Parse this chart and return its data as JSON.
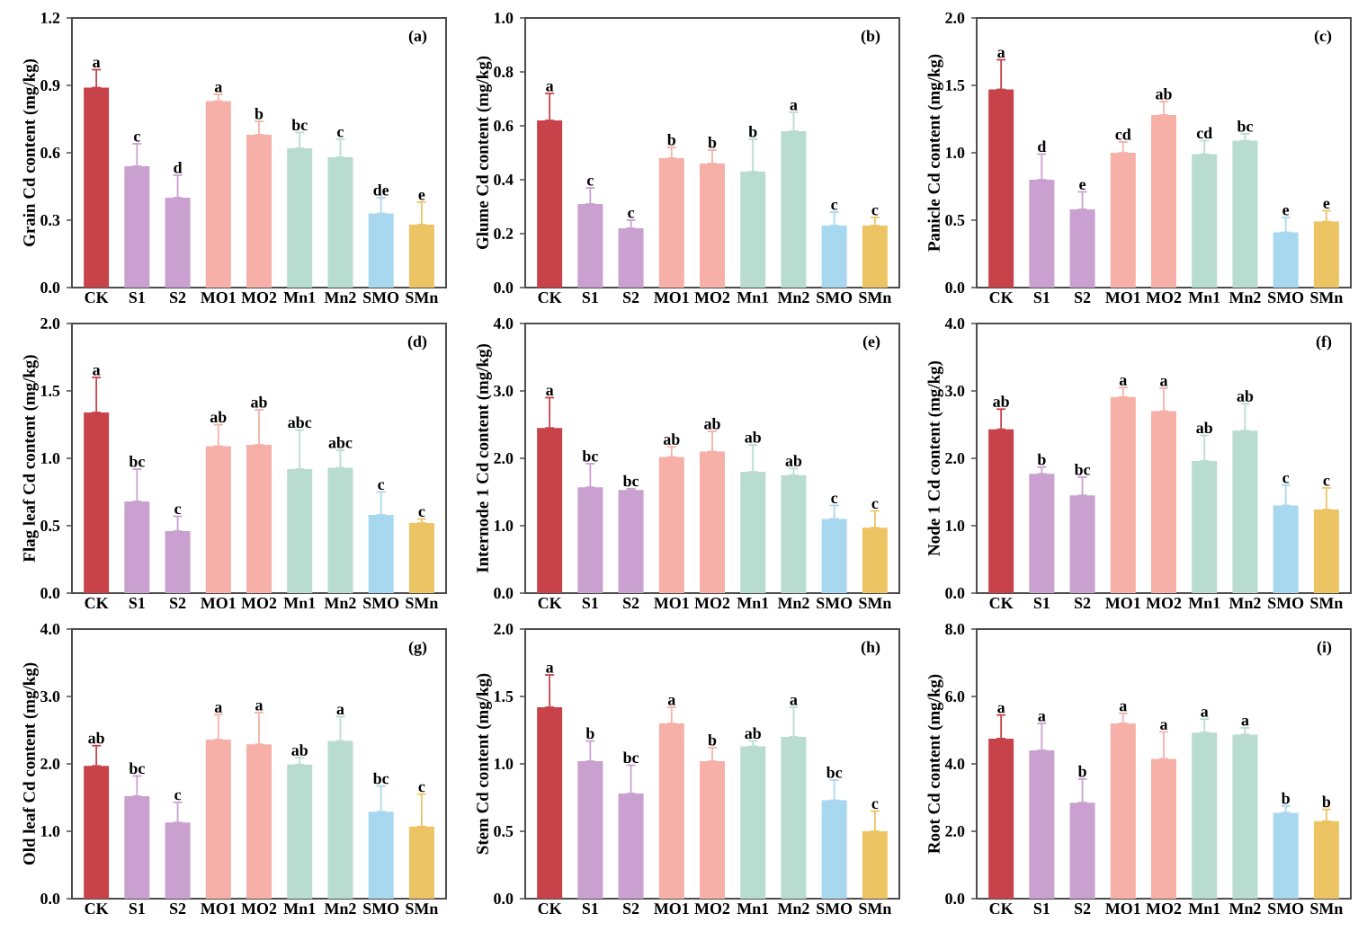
{
  "chart_data": [
    {
      "type": "bar",
      "categories": [
        "CK",
        "S1",
        "S2",
        "MO1",
        "MO2",
        "Mn1",
        "Mn2",
        "SMO",
        "SMn"
      ],
      "ylabel": "Grain Cd content (mg/kg)",
      "ylim": [
        0,
        1.2
      ],
      "yticks": [
        {
          "value": 0,
          "label": "0.0"
        },
        {
          "value": 0.3,
          "label": "0.3"
        },
        {
          "value": 0.6,
          "label": "0.6"
        },
        {
          "value": 0.9,
          "label": "0.9"
        },
        {
          "value": 1.2,
          "label": "1.2"
        }
      ],
      "values": [
        0.89,
        0.54,
        0.4,
        0.83,
        0.68,
        0.62,
        0.58,
        0.33,
        0.28
      ],
      "errors": [
        [
          0.89,
          0.97
        ],
        [
          0.54,
          0.64
        ],
        [
          0.4,
          0.5
        ],
        [
          0.83,
          0.86
        ],
        [
          0.68,
          0.74
        ],
        [
          0.62,
          0.69
        ],
        [
          0.58,
          0.66
        ],
        [
          0.33,
          0.4
        ],
        [
          0.28,
          0.38
        ]
      ],
      "colors": [
        "#c8424a",
        "#c9a0d0",
        "#c9a0d0",
        "#f7b0a8",
        "#f7b0a8",
        "#b8ddd0",
        "#b8ddd0",
        "#a8d8f0",
        "#ecc463"
      ],
      "annotations": [
        "(a)",
        {
          "text": "a",
          "x": "CK",
          "y": 0.97
        },
        {
          "text": "c",
          "x": "S1",
          "y": 0.64
        },
        {
          "text": "d",
          "x": "S2",
          "y": 0.5
        },
        {
          "text": "a",
          "x": "MO1",
          "y": 0.86
        },
        {
          "text": "b",
          "x": "MO2",
          "y": 0.74
        },
        {
          "text": "bc",
          "x": "Mn1",
          "y": 0.69
        },
        {
          "text": "c",
          "x": "Mn2",
          "y": 0.66
        },
        {
          "text": "de",
          "x": "SMO",
          "y": 0.4
        },
        {
          "text": "e",
          "x": "SMn",
          "y": 0.38
        }
      ]
    },
    {
      "type": "bar",
      "categories": [
        "CK",
        "S1",
        "S2",
        "MO1",
        "MO2",
        "Mn1",
        "Mn2",
        "SMO",
        "SMn"
      ],
      "ylabel": "Glume Cd content (mg/kg)",
      "ylim": [
        0,
        1.0
      ],
      "yticks": [
        {
          "value": 0,
          "label": "0.0"
        },
        {
          "value": 0.2,
          "label": "0.2"
        },
        {
          "value": 0.4,
          "label": "0.4"
        },
        {
          "value": 0.6,
          "label": "0.6"
        },
        {
          "value": 0.8,
          "label": "0.8"
        },
        {
          "value": 1.0,
          "label": "1.0"
        }
      ],
      "values": [
        0.62,
        0.31,
        0.22,
        0.48,
        0.46,
        0.43,
        0.58,
        0.23,
        0.23
      ],
      "errors": [
        [
          0.62,
          0.72
        ],
        [
          0.31,
          0.37
        ],
        [
          0.22,
          0.25
        ],
        [
          0.48,
          0.52
        ],
        [
          0.46,
          0.51
        ],
        [
          0.43,
          0.55
        ],
        [
          0.58,
          0.65
        ],
        [
          0.23,
          0.28
        ],
        [
          0.23,
          0.26
        ]
      ],
      "colors": [
        "#c8424a",
        "#c9a0d0",
        "#c9a0d0",
        "#f7b0a8",
        "#f7b0a8",
        "#b8ddd0",
        "#b8ddd0",
        "#a8d8f0",
        "#ecc463"
      ],
      "annotations": [
        "(b)",
        {
          "text": "a",
          "x": "CK",
          "y": 0.72
        },
        {
          "text": "c",
          "x": "S1",
          "y": 0.37
        },
        {
          "text": "c",
          "x": "S2",
          "y": 0.25
        },
        {
          "text": "b",
          "x": "MO1",
          "y": 0.52
        },
        {
          "text": "b",
          "x": "MO2",
          "y": 0.51
        },
        {
          "text": "b",
          "x": "Mn1",
          "y": 0.55
        },
        {
          "text": "a",
          "x": "Mn2",
          "y": 0.65
        },
        {
          "text": "c",
          "x": "SMO",
          "y": 0.28
        },
        {
          "text": "c",
          "x": "SMn",
          "y": 0.26
        }
      ]
    },
    {
      "type": "bar",
      "categories": [
        "CK",
        "S1",
        "S2",
        "MO1",
        "MO2",
        "Mn1",
        "Mn2",
        "SMO",
        "SMn"
      ],
      "ylabel": "Panicle Cd  content (mg/kg)",
      "ylim": [
        0,
        2.0
      ],
      "yticks": [
        {
          "value": 0,
          "label": "0.0"
        },
        {
          "value": 0.5,
          "label": "0.5"
        },
        {
          "value": 1.0,
          "label": "1.0"
        },
        {
          "value": 1.5,
          "label": "1.5"
        },
        {
          "value": 2.0,
          "label": "2.0"
        }
      ],
      "values": [
        1.47,
        0.8,
        0.58,
        1.0,
        1.28,
        0.99,
        1.09,
        0.41,
        0.49
      ],
      "errors": [
        [
          1.47,
          1.69
        ],
        [
          0.8,
          0.99
        ],
        [
          0.58,
          0.71
        ],
        [
          1.0,
          1.08
        ],
        [
          1.28,
          1.38
        ],
        [
          0.99,
          1.09
        ],
        [
          1.09,
          1.14
        ],
        [
          0.41,
          0.52
        ],
        [
          0.49,
          0.57
        ]
      ],
      "colors": [
        "#c8424a",
        "#c9a0d0",
        "#c9a0d0",
        "#f7b0a8",
        "#f7b0a8",
        "#b8ddd0",
        "#b8ddd0",
        "#a8d8f0",
        "#ecc463"
      ],
      "annotations": [
        "(c)",
        {
          "text": "a",
          "x": "CK",
          "y": 1.69
        },
        {
          "text": "d",
          "x": "S1",
          "y": 0.99
        },
        {
          "text": "e",
          "x": "S2",
          "y": 0.71
        },
        {
          "text": "cd",
          "x": "MO1",
          "y": 1.08
        },
        {
          "text": "ab",
          "x": "MO2",
          "y": 1.38
        },
        {
          "text": "cd",
          "x": "Mn1",
          "y": 1.09
        },
        {
          "text": "bc",
          "x": "Mn2",
          "y": 1.14
        },
        {
          "text": "e",
          "x": "SMO",
          "y": 0.52
        },
        {
          "text": "e",
          "x": "SMn",
          "y": 0.57
        }
      ]
    },
    {
      "type": "bar",
      "categories": [
        "CK",
        "S1",
        "S2",
        "MO1",
        "MO2",
        "Mn1",
        "Mn2",
        "SMO",
        "SMn"
      ],
      "ylabel": "Flag leaf Cd content (mg/kg)",
      "ylim": [
        0,
        2.0
      ],
      "yticks": [
        {
          "value": 0,
          "label": "0.0"
        },
        {
          "value": 0.5,
          "label": "0.5"
        },
        {
          "value": 1.0,
          "label": "1.0"
        },
        {
          "value": 1.5,
          "label": "1.5"
        },
        {
          "value": 2.0,
          "label": "2.0"
        }
      ],
      "values": [
        1.34,
        0.68,
        0.46,
        1.09,
        1.1,
        0.92,
        0.93,
        0.58,
        0.52
      ],
      "errors": [
        [
          1.34,
          1.6
        ],
        [
          0.68,
          0.92
        ],
        [
          0.46,
          0.57
        ],
        [
          1.09,
          1.25
        ],
        [
          1.1,
          1.36
        ],
        [
          0.92,
          1.21
        ],
        [
          0.93,
          1.06
        ],
        [
          0.58,
          0.75
        ],
        [
          0.52,
          0.55
        ]
      ],
      "colors": [
        "#c8424a",
        "#c9a0d0",
        "#c9a0d0",
        "#f7b0a8",
        "#f7b0a8",
        "#b8ddd0",
        "#b8ddd0",
        "#a8d8f0",
        "#ecc463"
      ],
      "annotations": [
        "(d)",
        {
          "text": "a",
          "x": "CK",
          "y": 1.6
        },
        {
          "text": "bc",
          "x": "S1",
          "y": 0.92
        },
        {
          "text": "c",
          "x": "S2",
          "y": 0.57
        },
        {
          "text": "ab",
          "x": "MO1",
          "y": 1.25
        },
        {
          "text": "ab",
          "x": "MO2",
          "y": 1.36
        },
        {
          "text": "abc",
          "x": "Mn1",
          "y": 1.21
        },
        {
          "text": "abc",
          "x": "Mn2",
          "y": 1.06
        },
        {
          "text": "c",
          "x": "SMO",
          "y": 0.75
        },
        {
          "text": "c",
          "x": "SMn",
          "y": 0.55
        }
      ]
    },
    {
      "type": "bar",
      "categories": [
        "CK",
        "S1",
        "S2",
        "MO1",
        "MO2",
        "Mn1",
        "Mn2",
        "SMO",
        "SMn"
      ],
      "ylabel": "Internode 1 Cd content (mg/kg)",
      "ylim": [
        0,
        4.0
      ],
      "yticks": [
        {
          "value": 0,
          "label": "0.0"
        },
        {
          "value": 1.0,
          "label": "1.0"
        },
        {
          "value": 2.0,
          "label": "2.0"
        },
        {
          "value": 3.0,
          "label": "3.0"
        },
        {
          "value": 4.0,
          "label": "4.0"
        }
      ],
      "values": [
        2.45,
        1.57,
        1.53,
        2.02,
        2.1,
        1.8,
        1.75,
        1.1,
        0.97
      ],
      "errors": [
        [
          2.45,
          2.9
        ],
        [
          1.57,
          1.92
        ],
        [
          1.53,
          1.55
        ],
        [
          2.02,
          2.17
        ],
        [
          2.1,
          2.4
        ],
        [
          1.8,
          2.2
        ],
        [
          1.75,
          1.85
        ],
        [
          1.1,
          1.3
        ],
        [
          0.97,
          1.22
        ]
      ],
      "colors": [
        "#c8424a",
        "#c9a0d0",
        "#c9a0d0",
        "#f7b0a8",
        "#f7b0a8",
        "#b8ddd0",
        "#b8ddd0",
        "#a8d8f0",
        "#ecc463"
      ],
      "annotations": [
        "(e)",
        {
          "text": "a",
          "x": "CK",
          "y": 2.9
        },
        {
          "text": "bc",
          "x": "S1",
          "y": 1.92
        },
        {
          "text": "bc",
          "x": "S2",
          "y": 1.55
        },
        {
          "text": "ab",
          "x": "MO1",
          "y": 2.17
        },
        {
          "text": "ab",
          "x": "MO2",
          "y": 2.4
        },
        {
          "text": "ab",
          "x": "Mn1",
          "y": 2.2
        },
        {
          "text": "ab",
          "x": "Mn2",
          "y": 1.85
        },
        {
          "text": "c",
          "x": "SMO",
          "y": 1.3
        },
        {
          "text": "c",
          "x": "SMn",
          "y": 1.22
        }
      ]
    },
    {
      "type": "bar",
      "categories": [
        "CK",
        "S1",
        "S2",
        "MO1",
        "MO2",
        "Mn1",
        "Mn2",
        "SMO",
        "SMn"
      ],
      "ylabel": "Node 1 Cd content (mg/kg)",
      "ylim": [
        0,
        4.0
      ],
      "yticks": [
        {
          "value": 0,
          "label": "0.0"
        },
        {
          "value": 1.0,
          "label": "1.0"
        },
        {
          "value": 2.0,
          "label": "2.0"
        },
        {
          "value": 3.0,
          "label": "3.0"
        },
        {
          "value": 4.0,
          "label": "4.0"
        }
      ],
      "values": [
        2.43,
        1.77,
        1.45,
        2.91,
        2.7,
        1.96,
        2.41,
        1.3,
        1.24
      ],
      "errors": [
        [
          2.43,
          2.73
        ],
        [
          1.77,
          1.87
        ],
        [
          1.45,
          1.72
        ],
        [
          2.91,
          3.05
        ],
        [
          2.7,
          3.04
        ],
        [
          1.96,
          2.34
        ],
        [
          2.41,
          2.81
        ],
        [
          1.3,
          1.6
        ],
        [
          1.24,
          1.56
        ]
      ],
      "colors": [
        "#c8424a",
        "#c9a0d0",
        "#c9a0d0",
        "#f7b0a8",
        "#f7b0a8",
        "#b8ddd0",
        "#b8ddd0",
        "#a8d8f0",
        "#ecc463"
      ],
      "annotations": [
        "(f)",
        {
          "text": "ab",
          "x": "CK",
          "y": 2.73
        },
        {
          "text": "b",
          "x": "S1",
          "y": 1.87
        },
        {
          "text": "bc",
          "x": "S2",
          "y": 1.72
        },
        {
          "text": "a",
          "x": "MO1",
          "y": 3.05
        },
        {
          "text": "a",
          "x": "MO2",
          "y": 3.04
        },
        {
          "text": "ab",
          "x": "Mn1",
          "y": 2.34
        },
        {
          "text": "ab",
          "x": "Mn2",
          "y": 2.81
        },
        {
          "text": "c",
          "x": "SMO",
          "y": 1.6
        },
        {
          "text": "c",
          "x": "SMn",
          "y": 1.56
        }
      ]
    },
    {
      "type": "bar",
      "categories": [
        "CK",
        "S1",
        "S2",
        "MO1",
        "MO2",
        "Mn1",
        "Mn2",
        "SMO",
        "SMn"
      ],
      "ylabel": "Old leaf Cd content (mg/kg)",
      "ylim": [
        0,
        4.0
      ],
      "yticks": [
        {
          "value": 0,
          "label": "0.0"
        },
        {
          "value": 1.0,
          "label": "1.0"
        },
        {
          "value": 2.0,
          "label": "2.0"
        },
        {
          "value": 3.0,
          "label": "3.0"
        },
        {
          "value": 4.0,
          "label": "4.0"
        }
      ],
      "values": [
        1.97,
        1.52,
        1.13,
        2.36,
        2.29,
        1.99,
        2.34,
        1.29,
        1.07
      ],
      "errors": [
        [
          1.97,
          2.27
        ],
        [
          1.52,
          1.82
        ],
        [
          1.13,
          1.43
        ],
        [
          2.36,
          2.73
        ],
        [
          2.29,
          2.76
        ],
        [
          1.99,
          2.09
        ],
        [
          2.34,
          2.7
        ],
        [
          1.29,
          1.67
        ],
        [
          1.07,
          1.55
        ]
      ],
      "colors": [
        "#c8424a",
        "#c9a0d0",
        "#c9a0d0",
        "#f7b0a8",
        "#f7b0a8",
        "#b8ddd0",
        "#b8ddd0",
        "#a8d8f0",
        "#ecc463"
      ],
      "annotations": [
        "(g)",
        {
          "text": "ab",
          "x": "CK",
          "y": 2.27
        },
        {
          "text": "bc",
          "x": "S1",
          "y": 1.82
        },
        {
          "text": "c",
          "x": "S2",
          "y": 1.43
        },
        {
          "text": "a",
          "x": "MO1",
          "y": 2.73
        },
        {
          "text": "a",
          "x": "MO2",
          "y": 2.76
        },
        {
          "text": "ab",
          "x": "Mn1",
          "y": 2.09
        },
        {
          "text": "a",
          "x": "Mn2",
          "y": 2.7
        },
        {
          "text": "bc",
          "x": "SMO",
          "y": 1.67
        },
        {
          "text": "c",
          "x": "SMn",
          "y": 1.55
        }
      ]
    },
    {
      "type": "bar",
      "categories": [
        "CK",
        "S1",
        "S2",
        "MO1",
        "MO2",
        "Mn1",
        "Mn2",
        "SMO",
        "SMn"
      ],
      "ylabel": "Stem Cd content (mg/kg)",
      "ylim": [
        0,
        2.0
      ],
      "yticks": [
        {
          "value": 0,
          "label": "0.0"
        },
        {
          "value": 0.5,
          "label": "0.5"
        },
        {
          "value": 1.0,
          "label": "1.0"
        },
        {
          "value": 1.5,
          "label": "1.5"
        },
        {
          "value": 2.0,
          "label": "2.0"
        }
      ],
      "values": [
        1.42,
        1.02,
        0.78,
        1.3,
        1.02,
        1.13,
        1.2,
        0.73,
        0.5
      ],
      "errors": [
        [
          1.42,
          1.66
        ],
        [
          1.02,
          1.17
        ],
        [
          0.78,
          0.99
        ],
        [
          1.3,
          1.42
        ],
        [
          1.02,
          1.12
        ],
        [
          1.13,
          1.17
        ],
        [
          1.2,
          1.42
        ],
        [
          0.73,
          0.88
        ],
        [
          0.5,
          0.65
        ]
      ],
      "colors": [
        "#c8424a",
        "#c9a0d0",
        "#c9a0d0",
        "#f7b0a8",
        "#f7b0a8",
        "#b8ddd0",
        "#b8ddd0",
        "#a8d8f0",
        "#ecc463"
      ],
      "annotations": [
        "(h)",
        {
          "text": "a",
          "x": "CK",
          "y": 1.66
        },
        {
          "text": "b",
          "x": "S1",
          "y": 1.17
        },
        {
          "text": "bc",
          "x": "S2",
          "y": 0.99
        },
        {
          "text": "a",
          "x": "MO1",
          "y": 1.42
        },
        {
          "text": "b",
          "x": "MO2",
          "y": 1.12
        },
        {
          "text": "ab",
          "x": "Mn1",
          "y": 1.17
        },
        {
          "text": "a",
          "x": "Mn2",
          "y": 1.42
        },
        {
          "text": "bc",
          "x": "SMO",
          "y": 0.88
        },
        {
          "text": "c",
          "x": "SMn",
          "y": 0.65
        }
      ]
    },
    {
      "type": "bar",
      "categories": [
        "CK",
        "S1",
        "S2",
        "MO1",
        "MO2",
        "Mn1",
        "Mn2",
        "SMO",
        "SMn"
      ],
      "ylabel": "Root Cd content (mg/kg)",
      "ylim": [
        0,
        8.0
      ],
      "yticks": [
        {
          "value": 0,
          "label": "0.0"
        },
        {
          "value": 2.0,
          "label": "2.0"
        },
        {
          "value": 4.0,
          "label": "4.0"
        },
        {
          "value": 6.0,
          "label": "6.0"
        },
        {
          "value": 8.0,
          "label": "8.0"
        }
      ],
      "values": [
        4.75,
        4.4,
        2.85,
        5.2,
        4.15,
        4.93,
        4.87,
        2.55,
        2.3
      ],
      "errors": [
        [
          4.75,
          5.45
        ],
        [
          4.4,
          5.2
        ],
        [
          2.85,
          3.55
        ],
        [
          5.2,
          5.5
        ],
        [
          4.15,
          4.95
        ],
        [
          4.93,
          5.33
        ],
        [
          4.87,
          5.07
        ],
        [
          2.55,
          2.75
        ],
        [
          2.3,
          2.65
        ]
      ],
      "colors": [
        "#c8424a",
        "#c9a0d0",
        "#c9a0d0",
        "#f7b0a8",
        "#f7b0a8",
        "#b8ddd0",
        "#b8ddd0",
        "#a8d8f0",
        "#ecc463"
      ],
      "annotations": [
        "(i)",
        {
          "text": "a",
          "x": "CK",
          "y": 5.45
        },
        {
          "text": "a",
          "x": "S1",
          "y": 5.2
        },
        {
          "text": "b",
          "x": "S2",
          "y": 3.55
        },
        {
          "text": "a",
          "x": "MO1",
          "y": 5.5
        },
        {
          "text": "a",
          "x": "MO2",
          "y": 4.95
        },
        {
          "text": "a",
          "x": "Mn1",
          "y": 5.33
        },
        {
          "text": "a",
          "x": "Mn2",
          "y": 5.07
        },
        {
          "text": "b",
          "x": "SMO",
          "y": 2.75
        },
        {
          "text": "b",
          "x": "SMn",
          "y": 2.65
        }
      ]
    }
  ]
}
